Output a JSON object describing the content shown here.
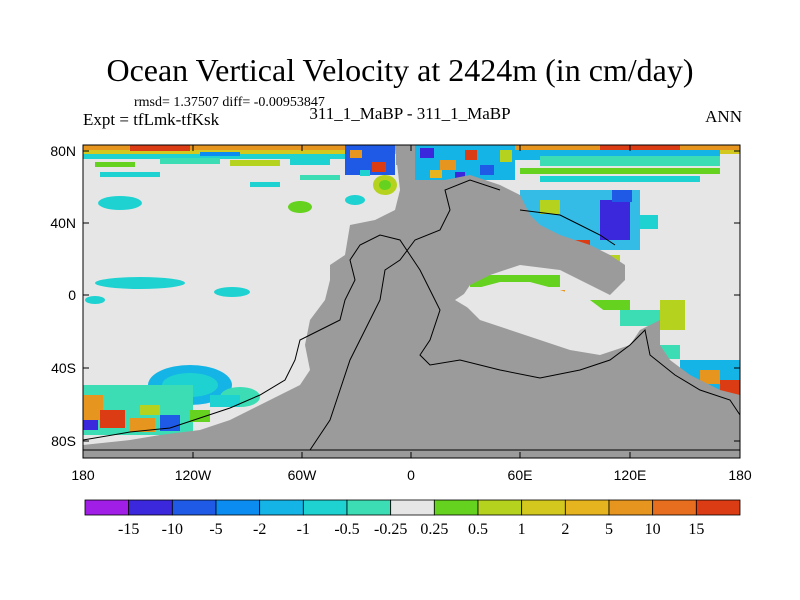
{
  "title": "Ocean Vertical Velocity at 2424m (in cm/day)",
  "stats": "rmsd= 1.37507 diff= -0.00953847",
  "experiment": "Expt = tfLmk-tfKsk",
  "case_label": "311_1_MaBP - 311_1_MaBP",
  "season": "ANN",
  "lat_ticks": [
    "80N",
    "40N",
    "0",
    "40S",
    "80S"
  ],
  "lon_ticks": [
    "180",
    "120W",
    "60W",
    "0",
    "60E",
    "120E",
    "180"
  ],
  "colorbar": {
    "labels": [
      "-15",
      "-10",
      "-5",
      "-2",
      "-1",
      "-0.5",
      "-0.25",
      "0.25",
      "0.5",
      "1",
      "2",
      "5",
      "10",
      "15"
    ],
    "colors": [
      "#a01ee6",
      "#3c28dc",
      "#1e5ae6",
      "#0a8cf0",
      "#14b4e6",
      "#1ed2d2",
      "#3cdcb4",
      "#e6e6e6",
      "#64d21e",
      "#b4d21e",
      "#d2c81e",
      "#e6b41e",
      "#e6961e",
      "#e66e1e",
      "#dc3c14"
    ]
  },
  "colors": {
    "land": "#9b9b9b",
    "near_zero": "#e6e6e6"
  }
}
